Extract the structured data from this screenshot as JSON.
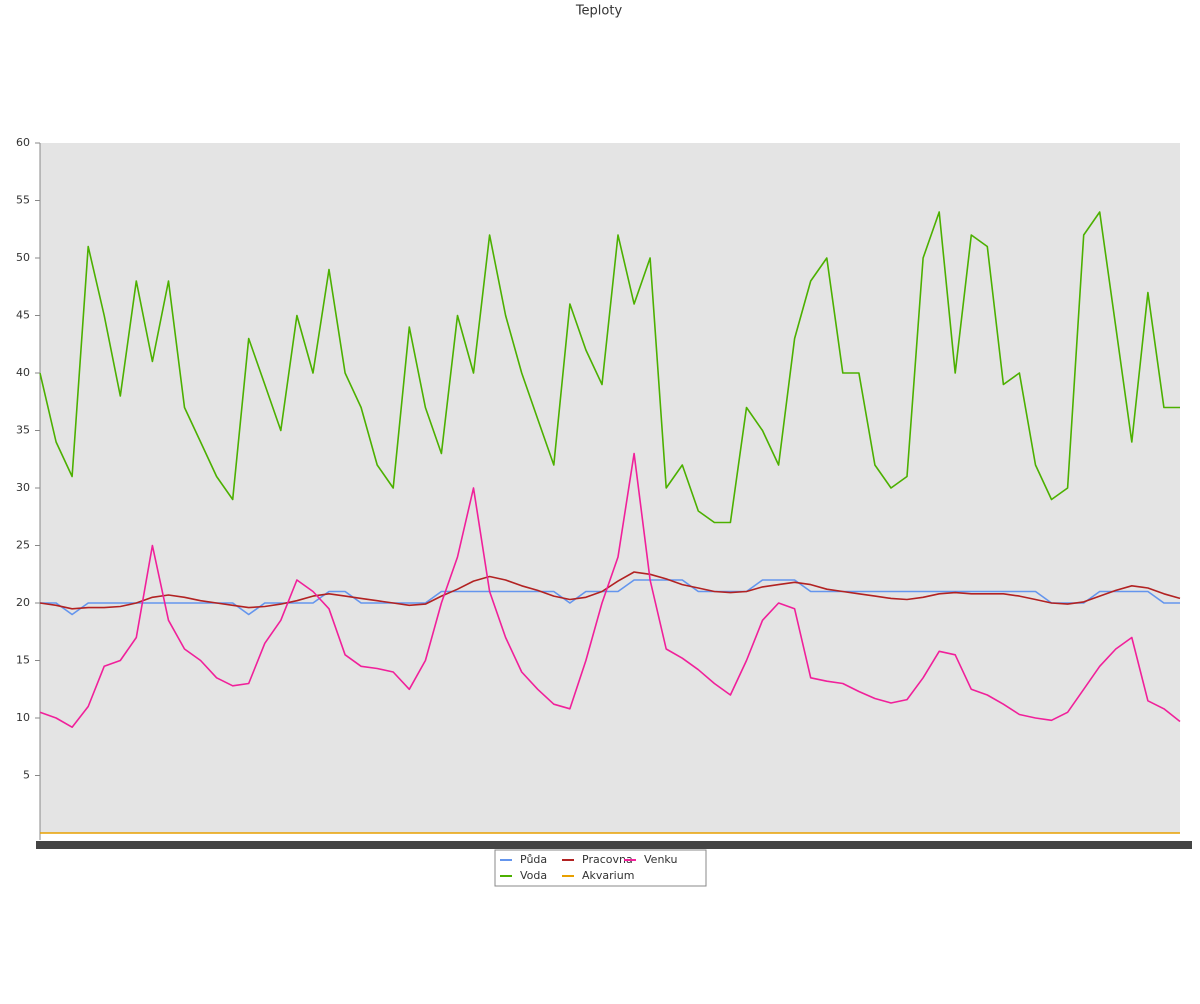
{
  "chart_data": {
    "type": "line",
    "title": "Teploty",
    "ylim": [
      0,
      60
    ],
    "yticks": [
      5,
      10,
      15,
      20,
      25,
      30,
      35,
      40,
      45,
      50,
      55,
      60
    ],
    "legend": "bottom",
    "series": [
      {
        "name": "Půda",
        "color": "#6495ed",
        "values": [
          20,
          20,
          19,
          20,
          20,
          20,
          20,
          20,
          20,
          20,
          20,
          20,
          20,
          19,
          20,
          20,
          20,
          20,
          21,
          21,
          20,
          20,
          20,
          20,
          20,
          21,
          21,
          21,
          21,
          21,
          21,
          21,
          21,
          20,
          21,
          21,
          21,
          22,
          22,
          22,
          22,
          21,
          21,
          21,
          21,
          22,
          22,
          22,
          21,
          21,
          21,
          21,
          21,
          21,
          21,
          21,
          21,
          21,
          21,
          21,
          21,
          21,
          21,
          20,
          20,
          20,
          21,
          21,
          21,
          21,
          20,
          20
        ]
      },
      {
        "name": "Voda",
        "color": "#4cb000",
        "values": [
          40,
          34,
          31,
          51,
          45,
          38,
          48,
          41,
          48,
          37,
          34,
          31,
          29,
          43,
          39,
          35,
          45,
          40,
          49,
          40,
          37,
          32,
          30,
          44,
          37,
          33,
          45,
          40,
          52,
          45,
          40,
          36,
          32,
          46,
          42,
          39,
          52,
          46,
          50,
          30,
          32,
          28,
          27,
          27,
          37,
          35,
          32,
          43,
          48,
          50,
          40,
          40,
          32,
          30,
          31,
          50,
          54,
          40,
          52,
          51,
          39,
          40,
          32,
          29,
          30,
          52,
          54,
          44,
          34,
          47,
          37,
          37
        ]
      },
      {
        "name": "Pracovna",
        "color": "#b22222",
        "values": [
          20,
          19.8,
          19.5,
          19.6,
          19.6,
          19.7,
          20,
          20.5,
          20.7,
          20.5,
          20.2,
          20,
          19.8,
          19.6,
          19.7,
          19.9,
          20.2,
          20.6,
          20.8,
          20.6,
          20.4,
          20.2,
          20,
          19.8,
          19.9,
          20.6,
          21.2,
          21.9,
          22.3,
          22,
          21.5,
          21.1,
          20.6,
          20.3,
          20.5,
          21,
          21.9,
          22.7,
          22.5,
          22.1,
          21.6,
          21.3,
          21,
          20.9,
          21,
          21.4,
          21.6,
          21.8,
          21.6,
          21.2,
          21,
          20.8,
          20.6,
          20.4,
          20.3,
          20.5,
          20.8,
          20.9,
          20.8,
          20.8,
          20.8,
          20.6,
          20.3,
          20,
          19.9,
          20.1,
          20.6,
          21.1,
          21.5,
          21.3,
          20.8,
          20.4
        ]
      },
      {
        "name": "Akvarium",
        "color": "#e8a000",
        "values": [
          0,
          0,
          0,
          0,
          0,
          0,
          0,
          0,
          0,
          0,
          0,
          0,
          0,
          0,
          0,
          0,
          0,
          0,
          0,
          0,
          0,
          0,
          0,
          0,
          0,
          0,
          0,
          0,
          0,
          0,
          0,
          0,
          0,
          0,
          0,
          0,
          0,
          0,
          0,
          0,
          0,
          0,
          0,
          0,
          0,
          0,
          0,
          0,
          0,
          0,
          0,
          0,
          0,
          0,
          0,
          0,
          0,
          0,
          0,
          0,
          0,
          0,
          0,
          0,
          0,
          0,
          0,
          0,
          0,
          0,
          0,
          0
        ]
      },
      {
        "name": "Venku",
        "color": "#f0209a",
        "values": [
          10.5,
          10,
          9.2,
          11,
          14.5,
          15,
          17,
          25,
          18.5,
          16,
          15,
          13.5,
          12.8,
          13,
          16.5,
          18.5,
          22,
          21,
          19.5,
          15.5,
          14.5,
          14.3,
          14,
          12.5,
          15,
          20,
          24,
          30,
          21,
          17,
          14,
          12.5,
          11.2,
          10.8,
          15,
          20,
          24,
          33,
          22,
          16,
          15.2,
          14.2,
          13,
          12,
          15,
          18.5,
          20,
          19.5,
          13.5,
          13.2,
          13,
          12.3,
          11.7,
          11.3,
          11.6,
          13.5,
          15.8,
          15.5,
          12.5,
          12,
          11.2,
          10.3,
          10,
          9.8,
          10.5,
          12.5,
          14.5,
          16,
          17,
          11.5,
          10.8,
          9.7
        ]
      }
    ]
  }
}
